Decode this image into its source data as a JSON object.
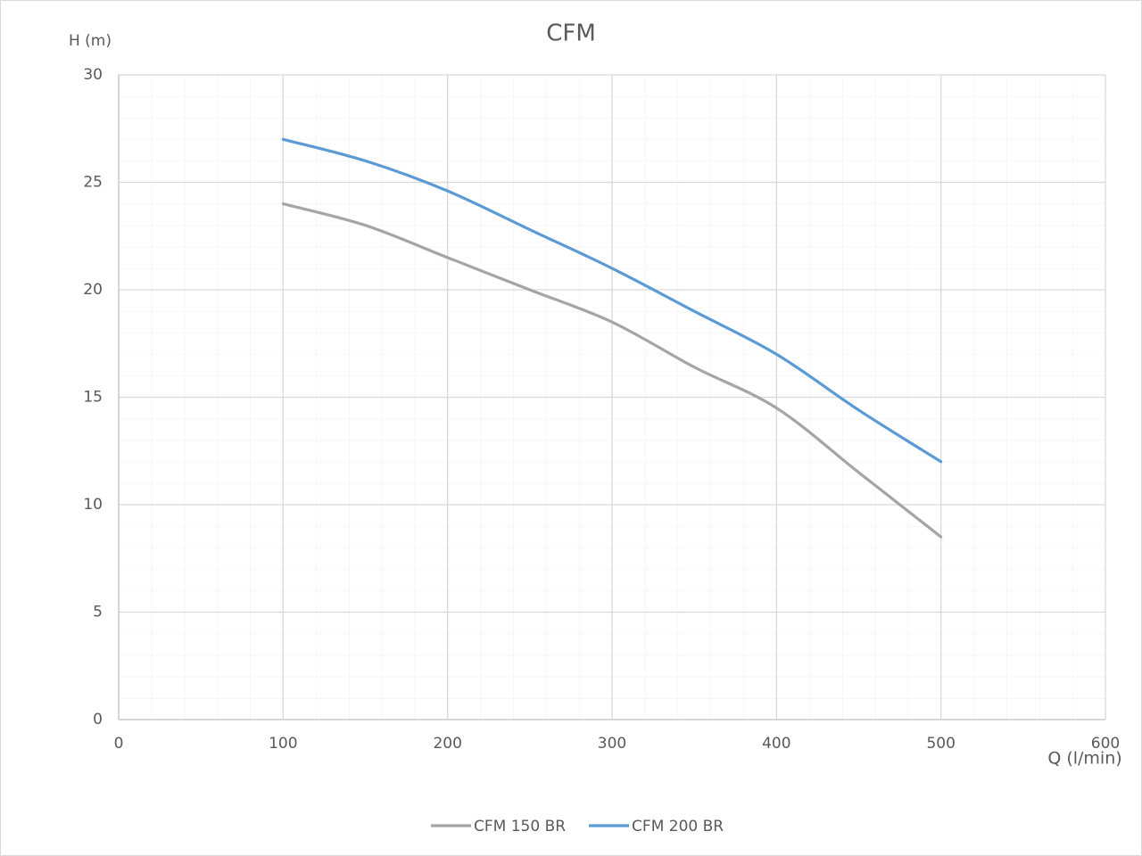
{
  "chart_data": {
    "type": "line",
    "title": "CFM",
    "y_label": "H (m)",
    "x_label": "Q (l/min)",
    "x": [
      100,
      150,
      200,
      250,
      300,
      350,
      400,
      450,
      500
    ],
    "series": [
      {
        "name": "CFM 150 BR",
        "color": "#a5a5a5",
        "values": [
          24,
          23,
          21.5,
          20,
          18.5,
          16.4,
          14.5,
          11.5,
          8.5
        ]
      },
      {
        "name": "CFM 200 BR",
        "color": "#5b9bd5",
        "values": [
          27,
          26,
          24.6,
          22.8,
          21,
          19,
          17,
          14.4,
          12
        ]
      }
    ],
    "xlim": [
      0,
      600
    ],
    "xticks": [
      0,
      100,
      200,
      300,
      400,
      500,
      600
    ],
    "ylim": [
      0,
      30
    ],
    "yticks": [
      0,
      5,
      10,
      15,
      20,
      25,
      30
    ],
    "grid": true,
    "legend": "bottom"
  }
}
